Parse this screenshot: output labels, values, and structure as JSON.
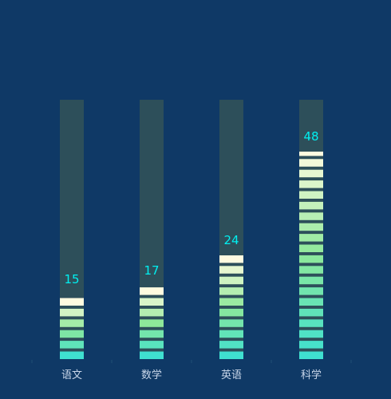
{
  "chart_data": {
    "type": "bar",
    "categories": [
      "语文",
      "数学",
      "英语",
      "科学"
    ],
    "values": [
      15,
      17,
      24,
      48
    ],
    "ylim": [
      0,
      60
    ],
    "legend": "none",
    "grid": false,
    "title": "",
    "xlabel": "",
    "ylabel": ""
  },
  "colors": {
    "background": "#0f3966",
    "track": "#2d4f5a",
    "segment_bottom": "#3fe0d0",
    "segment_mid": "#8ee89a",
    "segment_top": "#fffbe0",
    "value_label": "#00f0f0",
    "axis_tick": "#1f4f74",
    "category_label": "#c9d7ea"
  }
}
